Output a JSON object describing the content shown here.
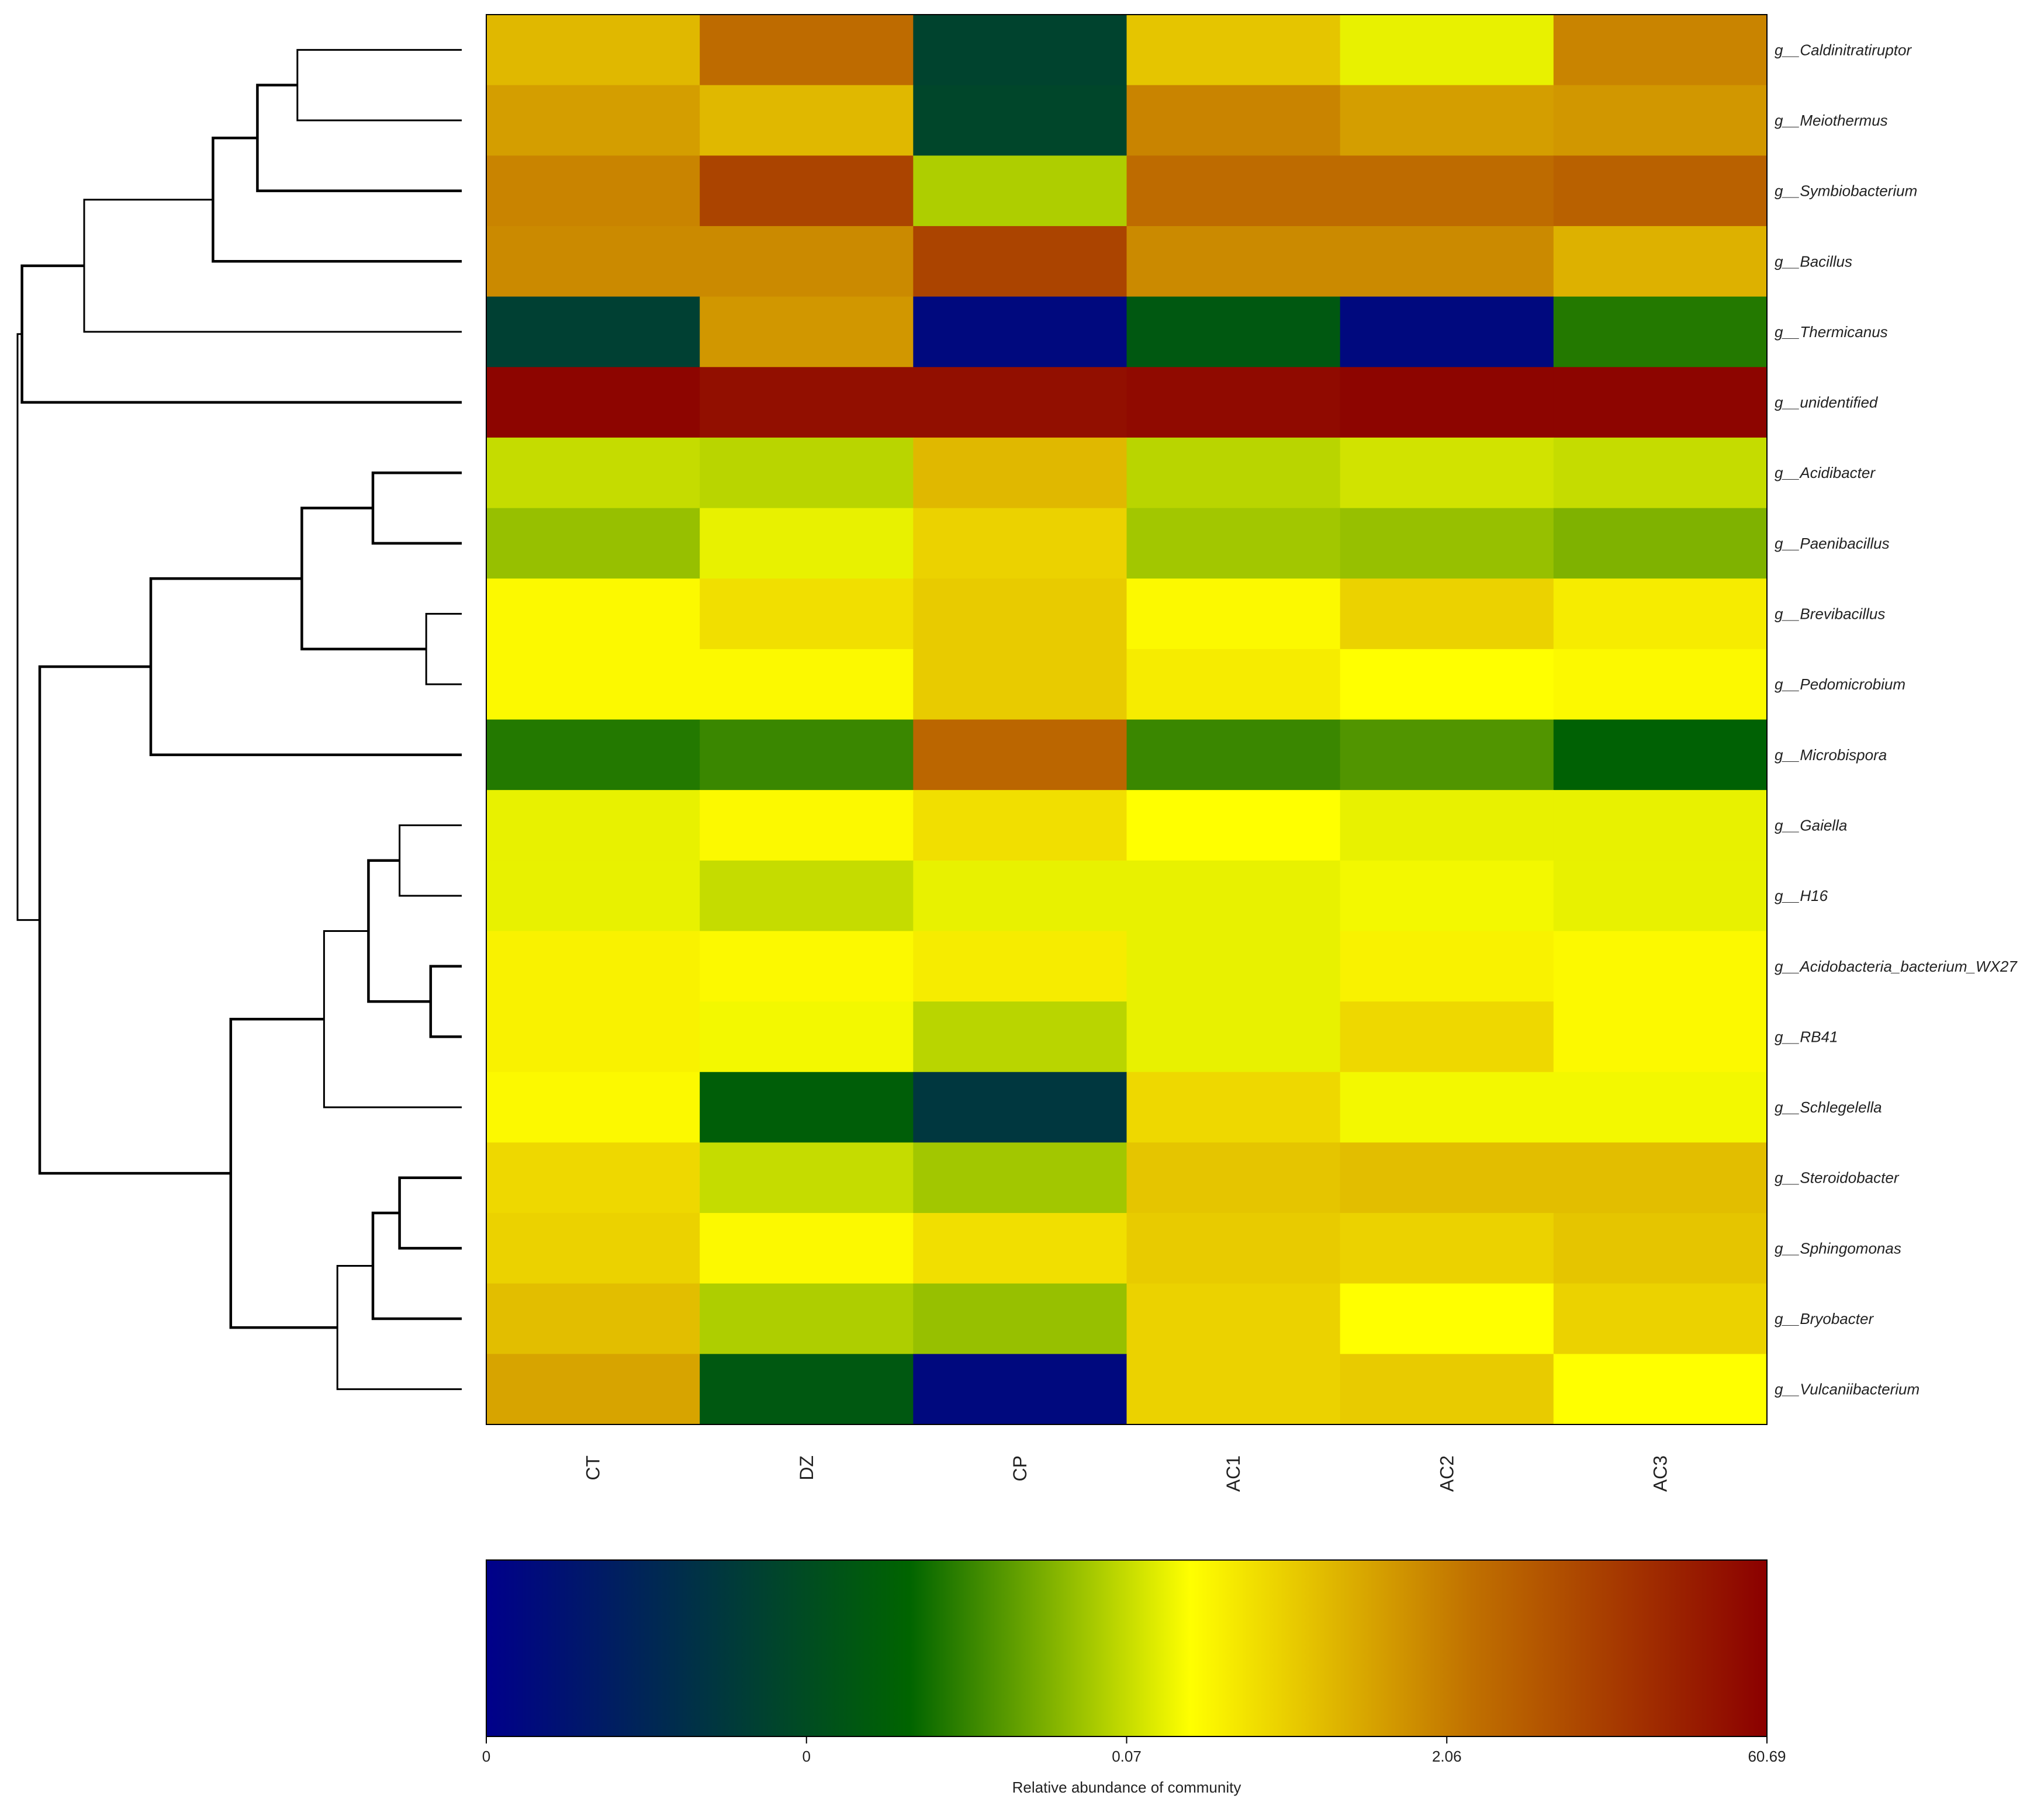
{
  "chart_data": {
    "type": "heatmap",
    "columns": [
      "CT",
      "DZ",
      "CP",
      "AC1",
      "AC2",
      "AC3"
    ],
    "rows": [
      "g__Caldinitratiruptor",
      "g__Meiothermus",
      "g__Symbiobacterium",
      "g__Bacillus",
      "g__Thermicanus",
      "g__unidentified",
      "g__Acidibacter",
      "g__Paenibacillus",
      "g__Brevibacillus",
      "g__Pedomicrobium",
      "g__Microbispora",
      "g__Gaiella",
      "g__H16",
      "g__Acidobacteria_bacterium_WX27",
      "g__RB41",
      "g__Schlegelella",
      "g__Steroidobacter",
      "g__Sphingomonas",
      "g__Bryobacter",
      "g__Vulcaniibacterium"
    ],
    "color_positions": [
      [
        0.66,
        0.78,
        0.22,
        0.64,
        0.53,
        0.74
      ],
      [
        0.7,
        0.66,
        0.23,
        0.74,
        0.7,
        0.71
      ],
      [
        0.74,
        0.86,
        0.48,
        0.78,
        0.78,
        0.8
      ],
      [
        0.73,
        0.73,
        0.86,
        0.73,
        0.73,
        0.67
      ],
      [
        0.21,
        0.71,
        0.03,
        0.29,
        0.03,
        0.36
      ],
      [
        0.99,
        0.97,
        0.97,
        0.98,
        0.99,
        0.99
      ],
      [
        0.5,
        0.49,
        0.66,
        0.49,
        0.51,
        0.5
      ],
      [
        0.46,
        0.53,
        0.62,
        0.47,
        0.46,
        0.44
      ],
      [
        0.56,
        0.6,
        0.63,
        0.56,
        0.62,
        0.58
      ],
      [
        0.56,
        0.56,
        0.63,
        0.58,
        0.55,
        0.56
      ],
      [
        0.36,
        0.38,
        0.79,
        0.38,
        0.4,
        0.32
      ],
      [
        0.53,
        0.56,
        0.6,
        0.55,
        0.53,
        0.53
      ],
      [
        0.53,
        0.5,
        0.53,
        0.53,
        0.54,
        0.53
      ],
      [
        0.57,
        0.56,
        0.58,
        0.53,
        0.57,
        0.56
      ],
      [
        0.57,
        0.54,
        0.49,
        0.53,
        0.61,
        0.56
      ],
      [
        0.56,
        0.31,
        0.18,
        0.61,
        0.54,
        0.54
      ],
      [
        0.61,
        0.5,
        0.47,
        0.64,
        0.65,
        0.65
      ],
      [
        0.62,
        0.56,
        0.6,
        0.63,
        0.62,
        0.64
      ],
      [
        0.65,
        0.48,
        0.46,
        0.62,
        0.55,
        0.62
      ],
      [
        0.69,
        0.29,
        0.03,
        0.62,
        0.63,
        0.55
      ]
    ],
    "color_scale": {
      "stops": [
        {
          "pos": 0.0,
          "color": "#00008b"
        },
        {
          "pos": 0.33,
          "color": "#006400"
        },
        {
          "pos": 0.55,
          "color": "#ffff00"
        },
        {
          "pos": 0.77,
          "color": "#c07000"
        },
        {
          "pos": 1.0,
          "color": "#8b0000"
        }
      ],
      "ticks": [
        {
          "pos": 0.0,
          "label": "0"
        },
        {
          "pos": 0.25,
          "label": "0"
        },
        {
          "pos": 0.5,
          "label": "0.07"
        },
        {
          "pos": 0.75,
          "label": "2.06"
        },
        {
          "pos": 1.0,
          "label": "60.69"
        }
      ],
      "title": "Relative abundance of community"
    },
    "dendrogram": {
      "side": "left",
      "linkage": [
        {
          "a": "r0",
          "b": "r1",
          "h": 0.63
        },
        {
          "a": "n0",
          "b": "r2",
          "h": 0.54
        },
        {
          "a": "n1",
          "b": "r3",
          "h": 0.44
        },
        {
          "a": "n2",
          "b": "r4",
          "h": 0.15
        },
        {
          "a": "n3",
          "b": "r5",
          "h": 0.01
        },
        {
          "a": "r6",
          "b": "r7",
          "h": 0.8
        },
        {
          "a": "r8",
          "b": "r9",
          "h": 0.92
        },
        {
          "a": "n5",
          "b": "n6",
          "h": 0.64
        },
        {
          "a": "n7",
          "b": "r10",
          "h": 0.3
        },
        {
          "a": "r11",
          "b": "r12",
          "h": 0.86
        },
        {
          "a": "r13",
          "b": "r14",
          "h": 0.93
        },
        {
          "a": "n9",
          "b": "n10",
          "h": 0.79
        },
        {
          "a": "n11",
          "b": "r15",
          "h": 0.69
        },
        {
          "a": "r16",
          "b": "r17",
          "h": 0.86
        },
        {
          "a": "n13",
          "b": "r18",
          "h": 0.8
        },
        {
          "a": "n14",
          "b": "r19",
          "h": 0.72
        },
        {
          "a": "n12",
          "b": "n15",
          "h": 0.48
        },
        {
          "a": "n8",
          "b": "n16",
          "h": 0.05
        },
        {
          "a": "n4",
          "b": "n17",
          "h": 0.0
        }
      ]
    }
  },
  "colors": {
    "background": "#ffffff",
    "line": "#000000",
    "text": "#222222"
  }
}
